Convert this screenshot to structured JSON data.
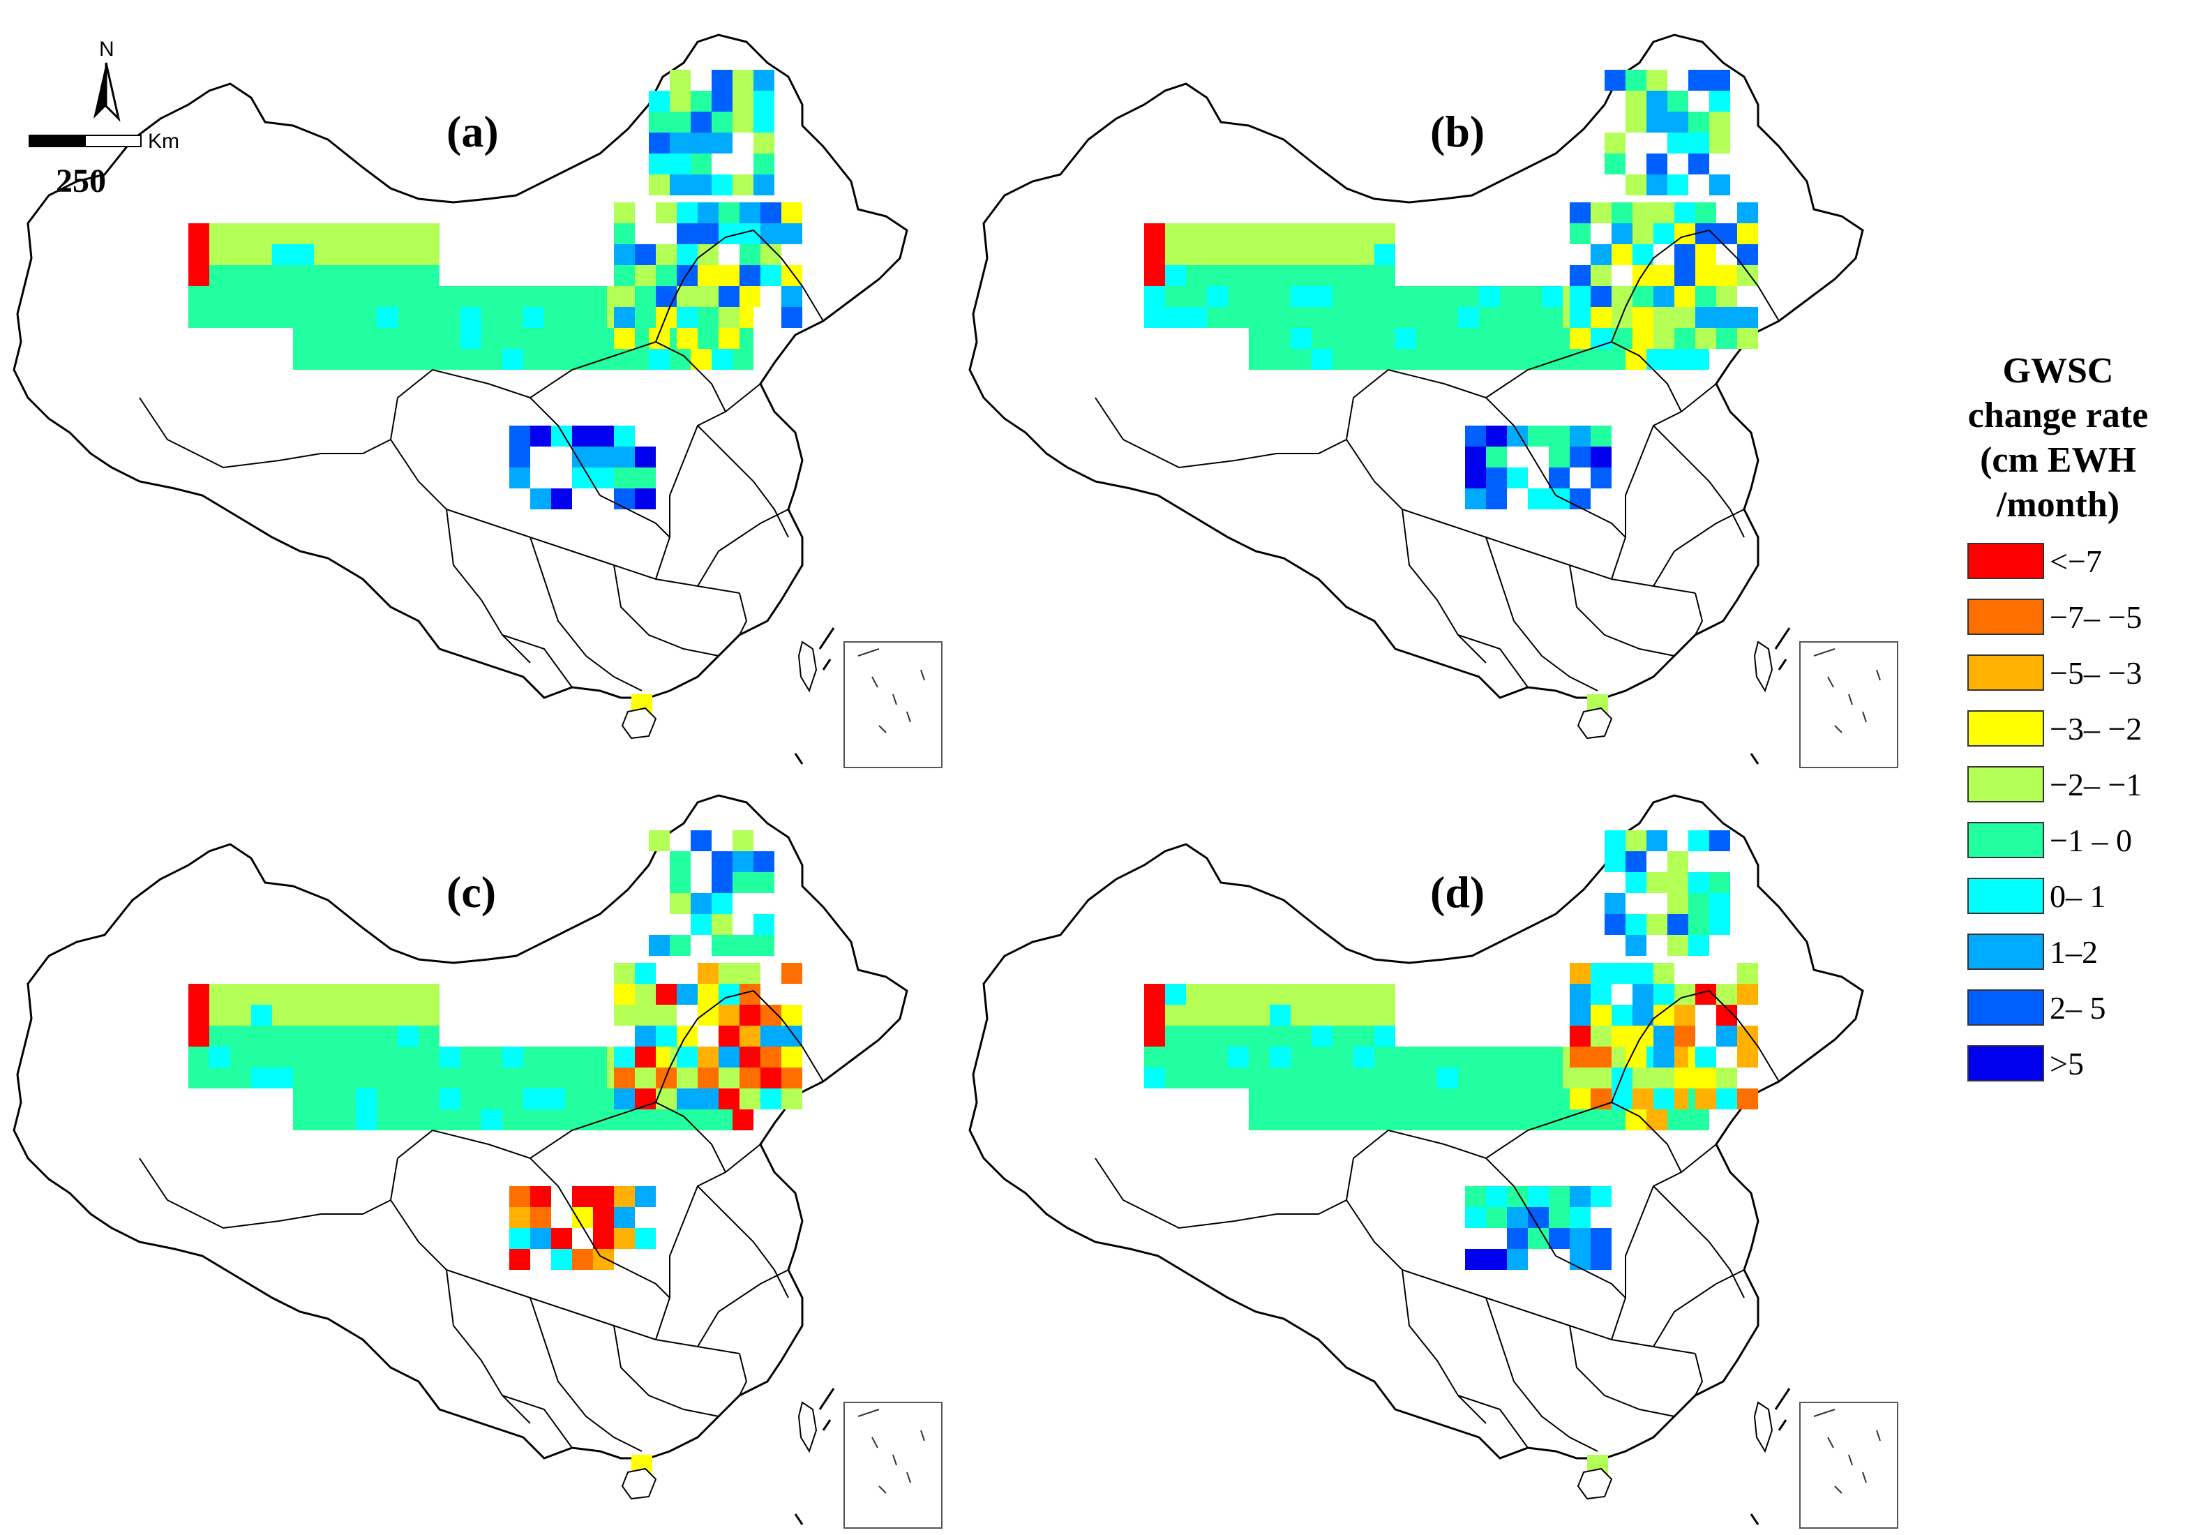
{
  "panels": [
    {
      "id": "a",
      "label": "(a)"
    },
    {
      "id": "b",
      "label": "(b)"
    },
    {
      "id": "c",
      "label": "(c)"
    },
    {
      "id": "d",
      "label": "(d)"
    }
  ],
  "north_label": "N",
  "scale_unit": "Km",
  "scale_value": "250",
  "legend": {
    "title_lines": [
      "GWSC",
      "change rate",
      "(cm EWH",
      "/month)"
    ],
    "classes": [
      {
        "label": "<−7",
        "color": "#ff0000"
      },
      {
        "label": "−7– −5",
        "color": "#ff6f00"
      },
      {
        "label": "−5– −3",
        "color": "#ffb000"
      },
      {
        "label": "−3– −2",
        "color": "#ffff00"
      },
      {
        "label": "−2– −1",
        "color": "#b4ff55"
      },
      {
        "label": "−1 – 0",
        "color": "#22ffa0"
      },
      {
        "label": " 0– 1",
        "color": "#00ffff"
      },
      {
        "label": " 1–2",
        "color": "#00aaff"
      },
      {
        "label": " 2– 5",
        "color": "#0060ff"
      },
      {
        "label": ">5",
        "color": "#0000ee"
      }
    ]
  }
}
